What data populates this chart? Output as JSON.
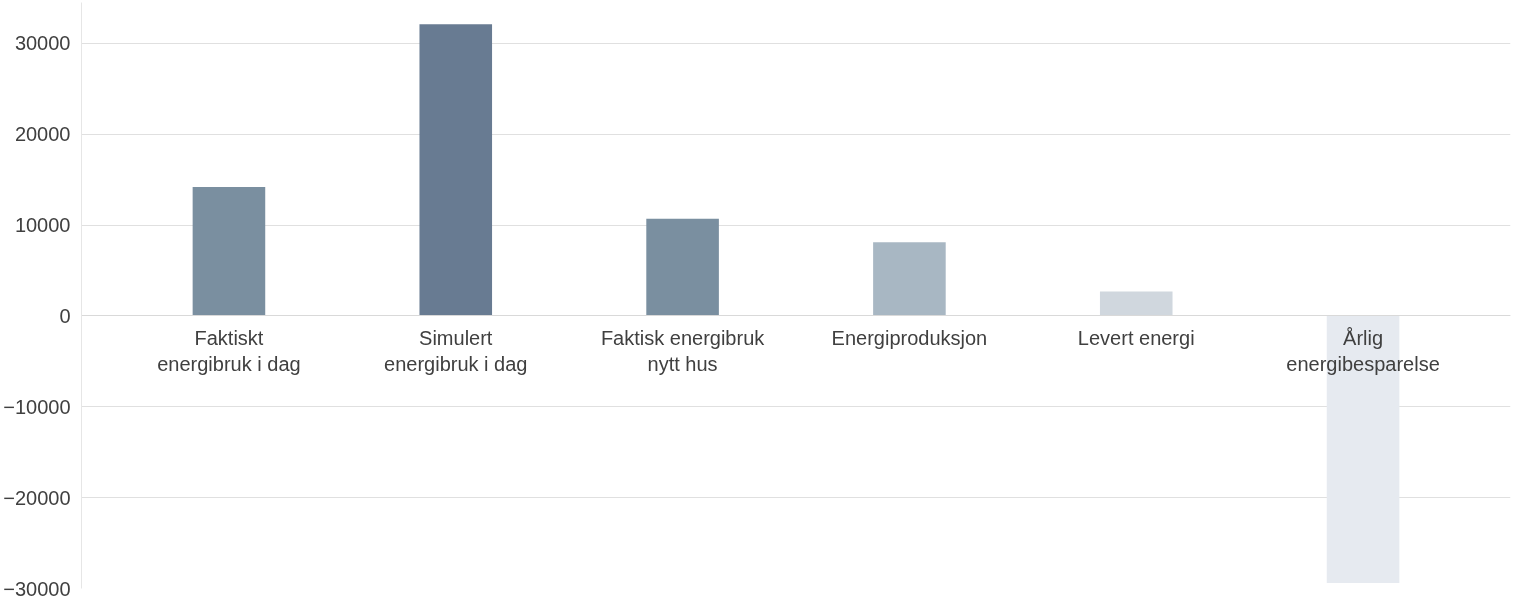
{
  "chart_data": {
    "type": "bar",
    "categories": [
      "Faktiskt energibruk i dag",
      "Simulert energibruk i dag",
      "Faktisk energibruk nytt hus",
      "Energiproduksjon",
      "Levert energi",
      "Årlig energibesparelse"
    ],
    "values": [
      14200,
      32100,
      10700,
      8100,
      2700,
      -29400
    ],
    "colors": [
      "#7a8fa0",
      "#687b92",
      "#7a8fa0",
      "#a8b7c3",
      "#d0d7de",
      "#e6eaf0"
    ],
    "ylim": [
      -30000,
      34500
    ],
    "yticks": [
      -30000,
      -20000,
      -10000,
      0,
      10000,
      20000,
      30000
    ],
    "grid": "y"
  }
}
